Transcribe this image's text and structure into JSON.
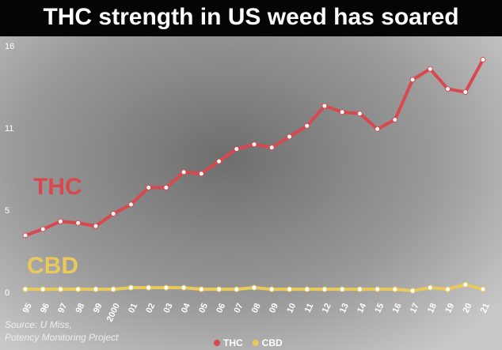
{
  "chart_data": {
    "type": "line",
    "title": "THC strength in US weed has soared",
    "source": [
      "Source: U Miss,",
      "Potency Monitoring Project"
    ],
    "categories": [
      "95",
      "96",
      "97",
      "98",
      "99",
      "2000",
      "01",
      "02",
      "03",
      "04",
      "05",
      "06",
      "07",
      "08",
      "09",
      "10",
      "11",
      "12",
      "13",
      "14",
      "15",
      "16",
      "17",
      "18",
      "19",
      "20",
      "21"
    ],
    "series": [
      {
        "name": "THC",
        "color": "#d9474f",
        "values": [
          3.7,
          4.1,
          4.6,
          4.5,
          4.3,
          5.1,
          5.7,
          6.8,
          6.8,
          7.8,
          7.7,
          8.5,
          9.3,
          9.6,
          9.4,
          10.1,
          10.8,
          12.1,
          11.7,
          11.6,
          10.6,
          11.2,
          13.8,
          14.5,
          13.2,
          13.0,
          15.1
        ]
      },
      {
        "name": "CBD",
        "color": "#e9c95c",
        "values": [
          0.2,
          0.2,
          0.2,
          0.2,
          0.2,
          0.2,
          0.3,
          0.3,
          0.3,
          0.3,
          0.2,
          0.2,
          0.2,
          0.3,
          0.2,
          0.2,
          0.2,
          0.2,
          0.2,
          0.2,
          0.2,
          0.2,
          0.1,
          0.3,
          0.2,
          0.5,
          0.2
        ]
      }
    ],
    "ylim": [
      0,
      16
    ],
    "yticks": [
      0,
      {
        "value": 5.33,
        "label": "5"
      },
      {
        "value": 10.67,
        "label": "11"
      },
      16
    ],
    "grid": false,
    "legend": "bottom"
  }
}
